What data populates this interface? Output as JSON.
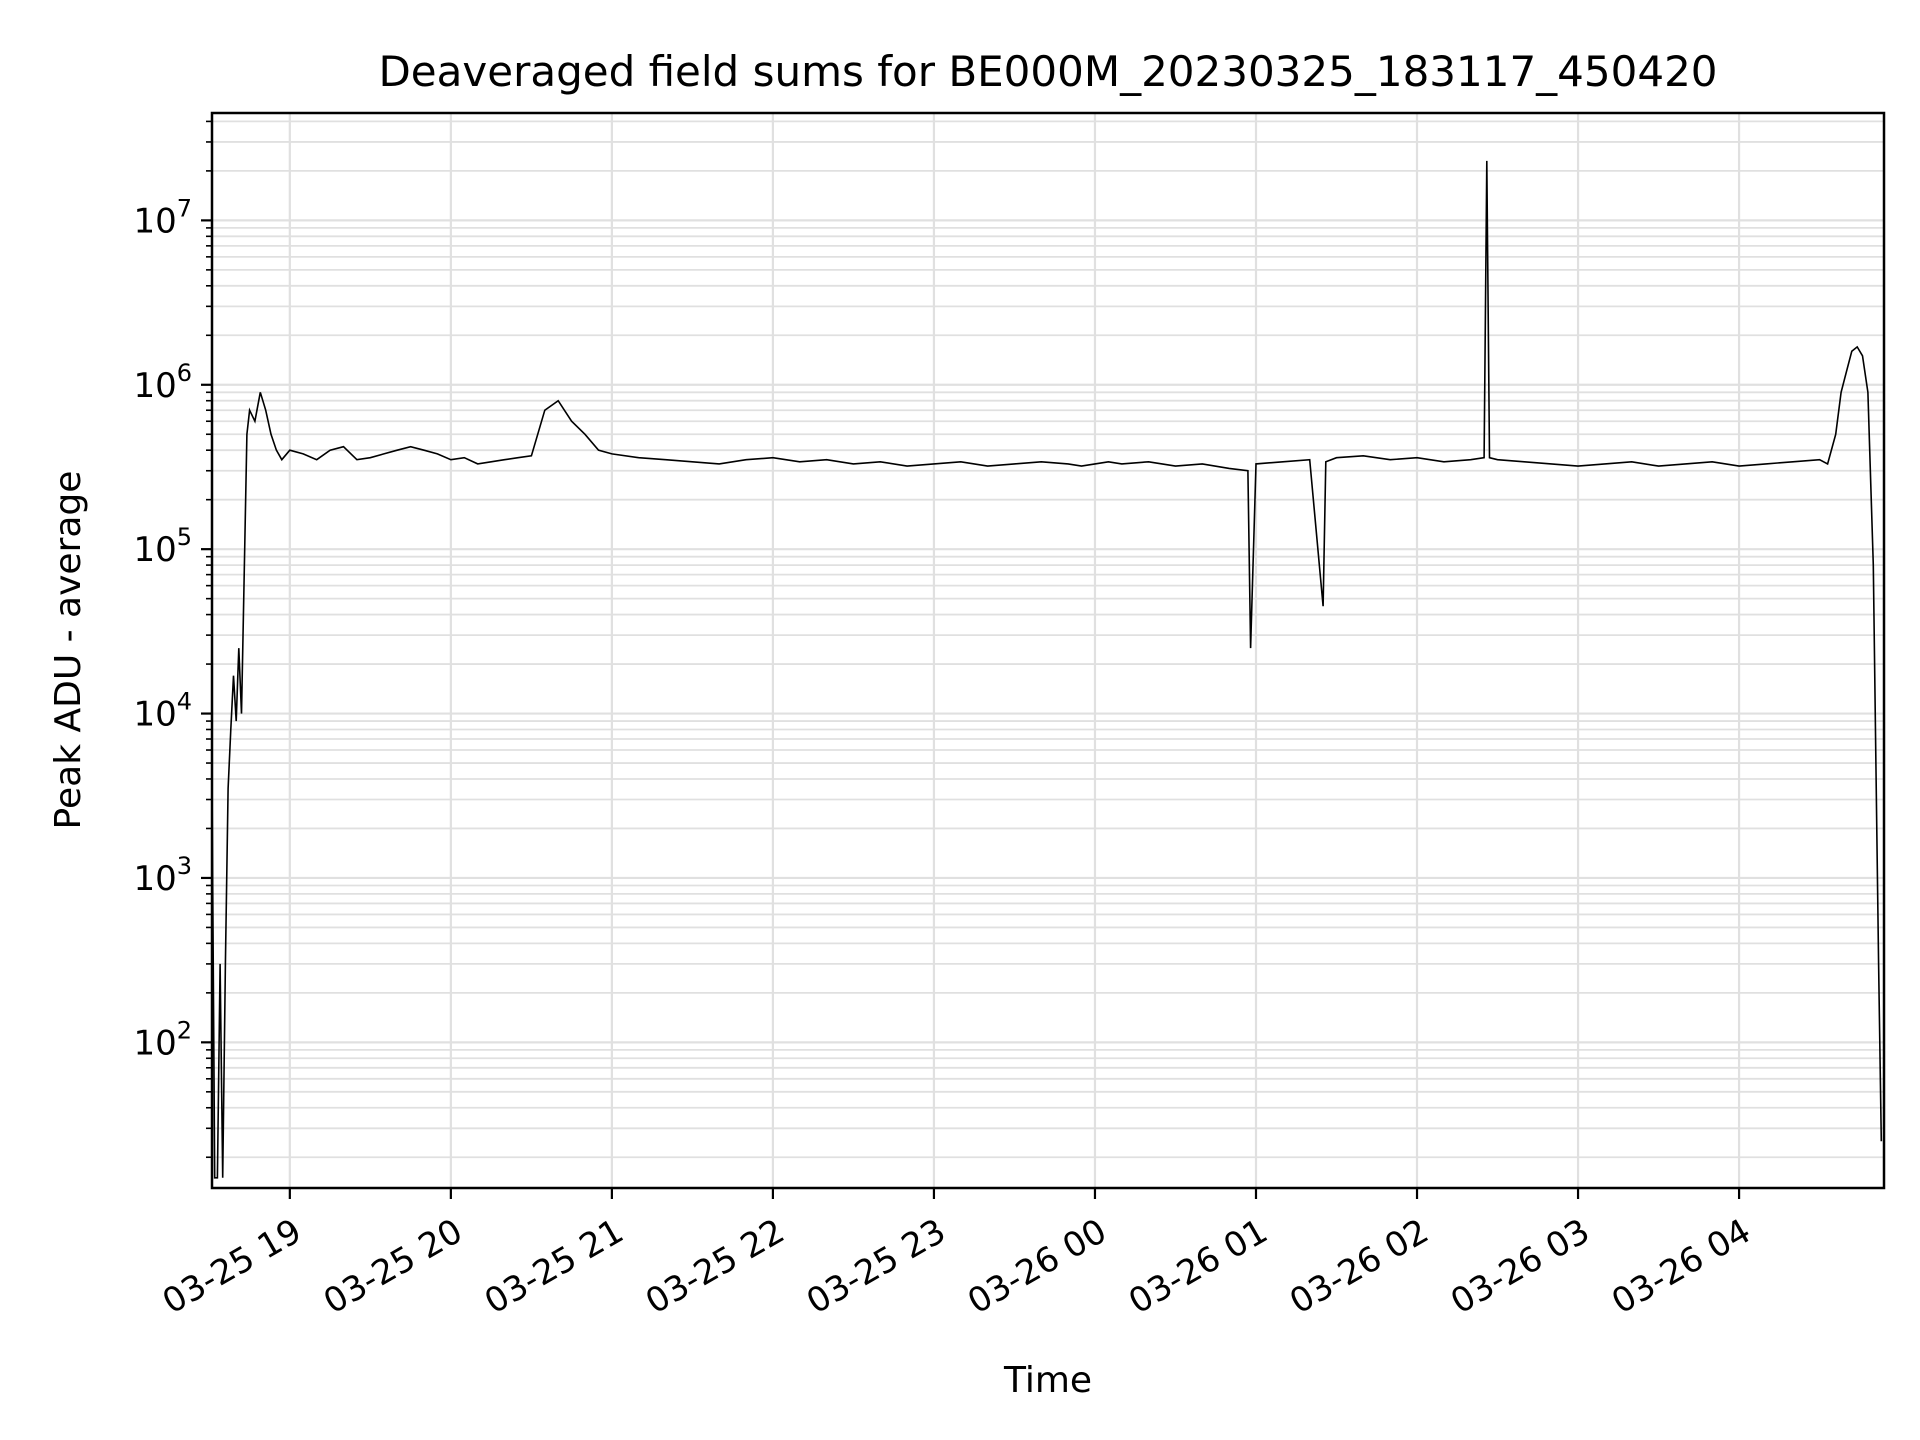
{
  "chart_data": {
    "type": "line",
    "title": "Deaveraged field sums for BE000M_20230325_183117_450420",
    "xlabel": "Time",
    "ylabel": "Peak ADU - average",
    "yscale": "log",
    "ylim": [
      13,
      45000000
    ],
    "xlim": [
      "2023-03-25 18:31",
      "2023-03-26 04:54"
    ],
    "grid": true,
    "line_color": "#000000",
    "grid_color": "#e0e0e0",
    "x_ticks": [
      {
        "label": "03-25 19",
        "time": "2023-03-25 19:00"
      },
      {
        "label": "03-25 20",
        "time": "2023-03-25 20:00"
      },
      {
        "label": "03-25 21",
        "time": "2023-03-25 21:00"
      },
      {
        "label": "03-25 22",
        "time": "2023-03-25 22:00"
      },
      {
        "label": "03-25 23",
        "time": "2023-03-25 23:00"
      },
      {
        "label": "03-26 00",
        "time": "2023-03-26 00:00"
      },
      {
        "label": "03-26 01",
        "time": "2023-03-26 01:00"
      },
      {
        "label": "03-26 02",
        "time": "2023-03-26 02:00"
      },
      {
        "label": "03-26 03",
        "time": "2023-03-26 03:00"
      },
      {
        "label": "03-26 04",
        "time": "2023-03-26 04:00"
      }
    ],
    "y_ticks": [
      {
        "base": "10",
        "exp": "2",
        "value": 100
      },
      {
        "base": "10",
        "exp": "3",
        "value": 1000
      },
      {
        "base": "10",
        "exp": "4",
        "value": 10000
      },
      {
        "base": "10",
        "exp": "5",
        "value": 100000
      },
      {
        "base": "10",
        "exp": "6",
        "value": 1000000
      },
      {
        "base": "10",
        "exp": "7",
        "value": 10000000
      }
    ],
    "series": [
      {
        "x": [
          "2023-03-25 18:31",
          "2023-03-25 18:32",
          "2023-03-25 18:33",
          "2023-03-25 18:34",
          "2023-03-25 18:35",
          "2023-03-25 18:36",
          "2023-03-25 18:37",
          "2023-03-25 18:38",
          "2023-03-25 18:39",
          "2023-03-25 18:40",
          "2023-03-25 18:41",
          "2023-03-25 18:42",
          "2023-03-25 18:43",
          "2023-03-25 18:44",
          "2023-03-25 18:45",
          "2023-03-25 18:47",
          "2023-03-25 18:49",
          "2023-03-25 18:51",
          "2023-03-25 18:53",
          "2023-03-25 18:55",
          "2023-03-25 18:57",
          "2023-03-25 19:00",
          "2023-03-25 19:05",
          "2023-03-25 19:10",
          "2023-03-25 19:15",
          "2023-03-25 19:20",
          "2023-03-25 19:25",
          "2023-03-25 19:30",
          "2023-03-25 19:35",
          "2023-03-25 19:40",
          "2023-03-25 19:45",
          "2023-03-25 19:50",
          "2023-03-25 19:55",
          "2023-03-25 20:00",
          "2023-03-25 20:05",
          "2023-03-25 20:10",
          "2023-03-25 20:15",
          "2023-03-25 20:20",
          "2023-03-25 20:25",
          "2023-03-25 20:30",
          "2023-03-25 20:35",
          "2023-03-25 20:40",
          "2023-03-25 20:45",
          "2023-03-25 20:50",
          "2023-03-25 20:55",
          "2023-03-25 21:00",
          "2023-03-25 21:10",
          "2023-03-25 21:20",
          "2023-03-25 21:30",
          "2023-03-25 21:40",
          "2023-03-25 21:50",
          "2023-03-25 22:00",
          "2023-03-25 22:10",
          "2023-03-25 22:20",
          "2023-03-25 22:30",
          "2023-03-25 22:40",
          "2023-03-25 22:50",
          "2023-03-25 23:00",
          "2023-03-25 23:10",
          "2023-03-25 23:20",
          "2023-03-25 23:30",
          "2023-03-25 23:40",
          "2023-03-25 23:50",
          "2023-03-25 23:55",
          "2023-03-26 00:00",
          "2023-03-26 00:05",
          "2023-03-26 00:10",
          "2023-03-26 00:20",
          "2023-03-26 00:30",
          "2023-03-26 00:40",
          "2023-03-26 00:50",
          "2023-03-26 00:57",
          "2023-03-26 00:58",
          "2023-03-26 01:00",
          "2023-03-26 01:10",
          "2023-03-26 01:20",
          "2023-03-26 01:25",
          "2023-03-26 01:26",
          "2023-03-26 01:30",
          "2023-03-26 01:40",
          "2023-03-26 01:50",
          "2023-03-26 02:00",
          "2023-03-26 02:10",
          "2023-03-26 02:20",
          "2023-03-26 02:25",
          "2023-03-26 02:26",
          "2023-03-26 02:27",
          "2023-03-26 02:30",
          "2023-03-26 02:40",
          "2023-03-26 02:50",
          "2023-03-26 03:00",
          "2023-03-26 03:10",
          "2023-03-26 03:20",
          "2023-03-26 03:30",
          "2023-03-26 03:40",
          "2023-03-26 03:50",
          "2023-03-26 04:00",
          "2023-03-26 04:10",
          "2023-03-26 04:20",
          "2023-03-26 04:30",
          "2023-03-26 04:33",
          "2023-03-26 04:36",
          "2023-03-26 04:38",
          "2023-03-26 04:40",
          "2023-03-26 04:42",
          "2023-03-26 04:44",
          "2023-03-26 04:46",
          "2023-03-26 04:48",
          "2023-03-26 04:50",
          "2023-03-26 04:51",
          "2023-03-26 04:52",
          "2023-03-26 04:53"
        ],
        "y": [
          4000,
          15,
          15,
          300,
          15,
          300,
          3500,
          8000,
          17000,
          9000,
          25000,
          10000,
          70000,
          500000,
          700000,
          600000,
          900000,
          700000,
          500000,
          400000,
          350000,
          400000,
          380000,
          350000,
          400000,
          420000,
          350000,
          360000,
          380000,
          400000,
          420000,
          400000,
          380000,
          350000,
          360000,
          330000,
          340000,
          350000,
          360000,
          370000,
          700000,
          800000,
          600000,
          500000,
          400000,
          380000,
          360000,
          350000,
          340000,
          330000,
          350000,
          360000,
          340000,
          350000,
          330000,
          340000,
          320000,
          330000,
          340000,
          320000,
          330000,
          340000,
          330000,
          320000,
          330000,
          340000,
          330000,
          340000,
          320000,
          330000,
          310000,
          300000,
          25000,
          330000,
          340000,
          350000,
          45000,
          340000,
          360000,
          370000,
          350000,
          360000,
          340000,
          350000,
          360000,
          23000000,
          360000,
          350000,
          340000,
          330000,
          320000,
          330000,
          340000,
          320000,
          330000,
          340000,
          320000,
          330000,
          340000,
          350000,
          330000,
          500000,
          900000,
          1200000,
          1600000,
          1700000,
          1500000,
          900000,
          80000,
          5000,
          300,
          25
        ]
      }
    ]
  }
}
